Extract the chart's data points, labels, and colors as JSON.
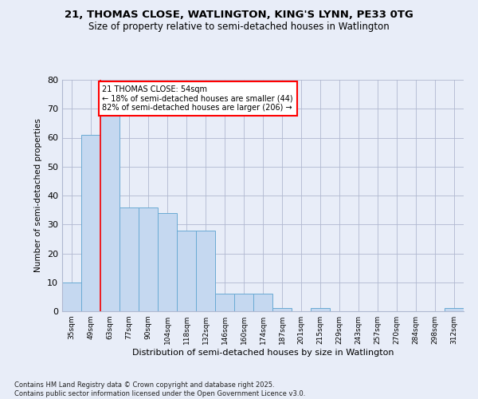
{
  "title1": "21, THOMAS CLOSE, WATLINGTON, KING'S LYNN, PE33 0TG",
  "title2": "Size of property relative to semi-detached houses in Watlington",
  "xlabel": "Distribution of semi-detached houses by size in Watlington",
  "ylabel": "Number of semi-detached properties",
  "categories": [
    "35sqm",
    "49sqm",
    "63sqm",
    "77sqm",
    "90sqm",
    "104sqm",
    "118sqm",
    "132sqm",
    "146sqm",
    "160sqm",
    "174sqm",
    "187sqm",
    "201sqm",
    "215sqm",
    "229sqm",
    "243sqm",
    "257sqm",
    "270sqm",
    "284sqm",
    "298sqm",
    "312sqm"
  ],
  "values": [
    10,
    61,
    68,
    36,
    36,
    34,
    28,
    28,
    6,
    6,
    6,
    1,
    0,
    1,
    0,
    0,
    0,
    0,
    0,
    0,
    1
  ],
  "bar_color": "#c5d8f0",
  "bar_edgecolor": "#6aaad4",
  "property_line_x": 1.5,
  "property_sqm": 54,
  "annotation_text": "21 THOMAS CLOSE: 54sqm\n← 18% of semi-detached houses are smaller (44)\n82% of semi-detached houses are larger (206) →",
  "annotation_box_color": "white",
  "annotation_box_edgecolor": "red",
  "property_line_color": "red",
  "ylim": [
    0,
    80
  ],
  "yticks": [
    0,
    10,
    20,
    30,
    40,
    50,
    60,
    70,
    80
  ],
  "footer": "Contains HM Land Registry data © Crown copyright and database right 2025.\nContains public sector information licensed under the Open Government Licence v3.0.",
  "bg_color": "#e8edf8",
  "grid_color": "#b0b8d0",
  "title1_fontsize": 9.5,
  "title2_fontsize": 8.5
}
